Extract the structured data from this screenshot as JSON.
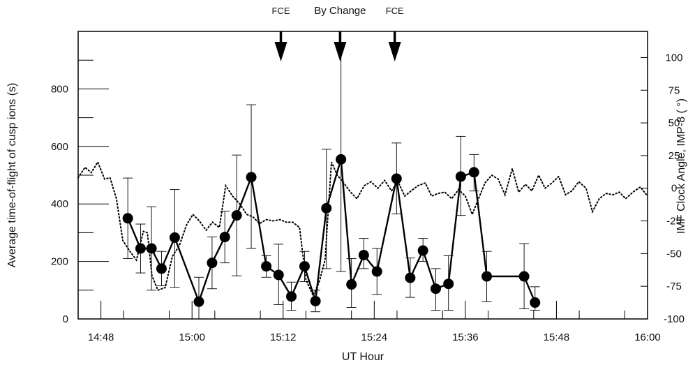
{
  "chart_data": {
    "type": "line",
    "xlabel": "UT Hour",
    "ylabel": "Average time-of-flight of cusp ions (s)",
    "y2label": "IMF Clock Angle, IMP-8 (   °)",
    "xlim": [
      14.75,
      16.0
    ],
    "ylim": [
      0,
      1000
    ],
    "y2lim": [
      -100,
      120
    ],
    "x_ticks": [
      14.8,
      15.0,
      15.2,
      15.4,
      15.6,
      15.8,
      16.0
    ],
    "x_tick_labels": [
      "14:48",
      "15:00",
      "15:12",
      "15:24",
      "15:36",
      "15:48",
      "16:00"
    ],
    "y_ticks": [
      0,
      200,
      400,
      600,
      800
    ],
    "y_tick_labels": [
      "0",
      "200",
      "400",
      "600",
      "800"
    ],
    "y2_ticks": [
      -100,
      -75,
      -50,
      -25,
      0,
      25,
      50,
      75,
      100
    ],
    "y2_tick_labels": [
      "-100",
      "-75",
      "-50",
      "-25",
      "0",
      "25",
      "50",
      "75",
      "100"
    ],
    "grid": false,
    "annotations": [
      {
        "label": "FCE",
        "x": 15.195
      },
      {
        "label": "By Change",
        "x": 15.325
      },
      {
        "label": "FCE",
        "x": 15.445
      }
    ],
    "series": [
      {
        "style": "solid-with-markers",
        "x": [
          14.859,
          14.887,
          14.911,
          14.933,
          14.962,
          15.015,
          15.044,
          15.072,
          15.098,
          15.13,
          15.163,
          15.19,
          15.218,
          15.247,
          15.271,
          15.295,
          15.327,
          15.35,
          15.377,
          15.406,
          15.449,
          15.479,
          15.507,
          15.535,
          15.563,
          15.59,
          15.619,
          15.647,
          15.729,
          15.753
        ],
        "values": [
          350,
          245,
          245,
          175,
          283,
          60,
          195,
          285,
          360,
          493,
          183,
          153,
          78,
          183,
          62,
          385,
          555,
          120,
          222,
          165,
          488,
          143,
          238,
          105,
          122,
          495,
          510,
          148,
          148,
          57
        ],
        "err_low": [
          210,
          160,
          100,
          115,
          110,
          0,
          105,
          195,
          150,
          245,
          145,
          50,
          30,
          130,
          25,
          175,
          165,
          40,
          175,
          85,
          365,
          75,
          200,
          30,
          30,
          360,
          445,
          60,
          35,
          30
        ],
        "err_high": [
          490,
          330,
          390,
          235,
          450,
          145,
          285,
          375,
          570,
          745,
          220,
          260,
          128,
          235,
          100,
          590,
          1000,
          210,
          280,
          245,
          612,
          212,
          280,
          175,
          220,
          635,
          572,
          235,
          262,
          112
        ]
      },
      {
        "style": "dotted",
        "axis": "right",
        "x": [
          14.75,
          14.765,
          14.779,
          14.793,
          14.808,
          14.82,
          14.834,
          14.848,
          14.863,
          14.878,
          14.893,
          14.902,
          14.912,
          14.925,
          14.941,
          14.957,
          14.972,
          14.988,
          15.002,
          15.016,
          15.031,
          15.045,
          15.06,
          15.074,
          15.089,
          15.105,
          15.12,
          15.134,
          15.148,
          15.163,
          15.178,
          15.193,
          15.207,
          15.221,
          15.236,
          15.25,
          15.266,
          15.279,
          15.292,
          15.306,
          15.319,
          15.333,
          15.348,
          15.362,
          15.378,
          15.393,
          15.408,
          15.423,
          15.438,
          15.452,
          15.467,
          15.481,
          15.496,
          15.512,
          15.526,
          15.54,
          15.555,
          15.57,
          15.585,
          15.6,
          15.615,
          15.629,
          15.643,
          15.658,
          15.672,
          15.687,
          15.703,
          15.717,
          15.732,
          15.746,
          15.761,
          15.775,
          15.79,
          15.805,
          15.82,
          15.834,
          15.849,
          15.865,
          15.879,
          15.894,
          15.909,
          15.924,
          15.938,
          15.952,
          15.968,
          15.984,
          16.0
        ],
        "values": [
          8,
          16,
          12,
          20,
          7,
          8,
          -8,
          -40,
          -48,
          -55,
          -33,
          -34,
          -67,
          -78,
          -76,
          -52,
          -44,
          -28,
          -20,
          -25,
          -32,
          -26,
          -30,
          2,
          -6,
          -12,
          -20,
          -22,
          -27,
          -24,
          -25,
          -24,
          -26,
          -26,
          -30,
          -70,
          -82,
          -72,
          -55,
          20,
          10,
          4,
          -3,
          -8,
          2,
          5,
          0,
          6,
          -2,
          5,
          -6,
          -2,
          2,
          4,
          -6,
          -4,
          -3,
          -8,
          -1,
          -6,
          -20,
          -8,
          4,
          10,
          7,
          -5,
          15,
          -3,
          3,
          -2,
          10,
          0,
          4,
          9,
          -5,
          -2,
          5,
          0,
          -18,
          -8,
          -4,
          -5,
          -3,
          -8,
          -3,
          1,
          -6
        ]
      }
    ]
  }
}
